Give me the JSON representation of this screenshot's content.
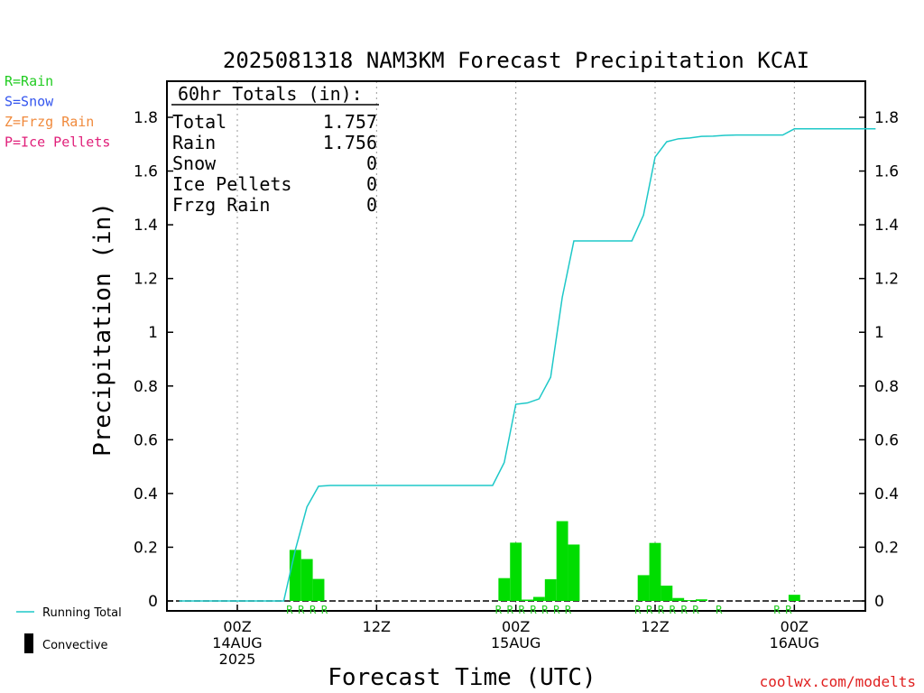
{
  "chart_data": {
    "type": "bar",
    "title": "2025081318 NAM3KM Forecast Precipitation KCAI",
    "xlabel": "Forecast Time (UTC)",
    "ylabel": "Precipitation (in)",
    "ylim": [
      0,
      1.9
    ],
    "y_ticks": [
      "0",
      "0.2",
      "0.4",
      "0.6",
      "0.8",
      "1",
      "1.2",
      "1.4",
      "1.6",
      "1.8"
    ],
    "x_unit": "forecast hour from 2025-08-13 18Z",
    "xlim": [
      0.5,
      61
    ],
    "x_ticks": [
      {
        "x": 6,
        "lines": [
          "00Z",
          "14AUG",
          "2025"
        ]
      },
      {
        "x": 18,
        "lines": [
          "12Z"
        ]
      },
      {
        "x": 30,
        "lines": [
          "00Z",
          "15AUG"
        ]
      },
      {
        "x": 42,
        "lines": [
          "12Z"
        ]
      },
      {
        "x": 54,
        "lines": [
          "00Z",
          "16AUG"
        ]
      }
    ],
    "grid": "vertical dotted at 00Z/12Z",
    "ptype_legend": [
      {
        "label": "R=Rain",
        "color": "#22cc22"
      },
      {
        "label": "S=Snow",
        "color": "#3355ee"
      },
      {
        "label": "Z=Frzg Rain",
        "color": "#f08a3c"
      },
      {
        "label": "P=Ice Pellets",
        "color": "#e0207a"
      }
    ],
    "totals_box": {
      "heading": "60hr Totals (in):",
      "rows": [
        {
          "label": "Total",
          "value": "1.757"
        },
        {
          "label": "Rain",
          "value": "1.756"
        },
        {
          "label": "Snow",
          "value": "0"
        },
        {
          "label": "Ice Pellets",
          "value": "0"
        },
        {
          "label": "Frzg Rain",
          "value": "0"
        }
      ]
    },
    "series": [
      {
        "name": "Running Total",
        "type": "line",
        "color": "#1ec8c8",
        "x": [
          1,
          6,
          10,
          11,
          12,
          13,
          14,
          28,
          29,
          30,
          31,
          32,
          33,
          34,
          35,
          36,
          37,
          38,
          39,
          40,
          41,
          42,
          43,
          44,
          45,
          46,
          47,
          48,
          49,
          50,
          51,
          52,
          53,
          54,
          55,
          56,
          57,
          58,
          59,
          60,
          61
        ],
        "values": [
          0,
          0,
          0,
          0.19,
          0.35,
          0.427,
          0.43,
          0.43,
          0.515,
          0.732,
          0.737,
          0.752,
          0.833,
          1.13,
          1.34,
          1.34,
          1.34,
          1.34,
          1.34,
          1.34,
          1.436,
          1.652,
          1.709,
          1.72,
          1.723,
          1.729,
          1.73,
          1.733,
          1.734,
          1.734,
          1.734,
          1.734,
          1.734,
          1.757,
          1.757,
          1.757,
          1.757,
          1.757,
          1.757,
          1.757,
          1.757
        ]
      },
      {
        "name": "Hourly Rain",
        "type": "bar",
        "color": "#00dd00",
        "x": [
          11,
          12,
          13,
          29,
          30,
          31,
          32,
          33,
          34,
          35,
          41,
          42,
          43,
          44,
          45,
          46,
          54
        ],
        "values": [
          0.19,
          0.156,
          0.082,
          0.085,
          0.217,
          0.005,
          0.015,
          0.081,
          0.297,
          0.21,
          0.096,
          0.216,
          0.057,
          0.011,
          0.003,
          0.006,
          0.023
        ]
      },
      {
        "name": "Convective",
        "type": "bar",
        "color": "#000000",
        "x": [],
        "values": []
      }
    ],
    "ptype_marks": {
      "color": "#22cc22",
      "letter": "R",
      "x": [
        11,
        12,
        13,
        14,
        29,
        30,
        31,
        32,
        33,
        34,
        35,
        41,
        42,
        43,
        44,
        45,
        46,
        48,
        53,
        54
      ]
    },
    "legend": [
      {
        "label": "Running Total",
        "kind": "line",
        "color": "#1ec8c8"
      },
      {
        "label": "Convective",
        "kind": "bar",
        "color": "#000000"
      }
    ],
    "credit": "coolwx.com/modelts"
  }
}
